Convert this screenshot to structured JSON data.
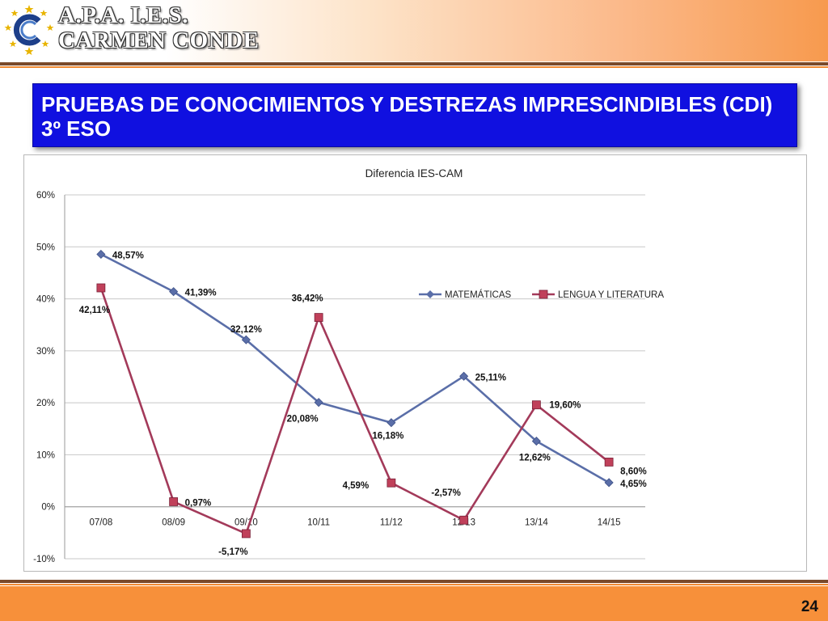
{
  "header": {
    "logo_line1": "A.P.A.  I.E.S.",
    "logo_line2": "CARMEN CONDE",
    "logo_icon": "stars-circle-logo"
  },
  "slide": {
    "title": "PRUEBAS DE CONOCIMIENTOS Y DESTREZAS IMPRESCINDIBLES (CDI) 3º ESO",
    "page_number": "24"
  },
  "colors": {
    "title_bg": "#1010e0",
    "matematicas": "#5a6ea8",
    "lengua": "#a33a5a",
    "footer": "#f7903a"
  },
  "chart_data": {
    "type": "line",
    "title": "Diferencia IES-CAM",
    "categories": [
      "07/08",
      "08/09",
      "09/10",
      "10/11",
      "11/12",
      "12/13",
      "13/14",
      "14/15"
    ],
    "y_ticks": [
      "-10%",
      "0%",
      "10%",
      "20%",
      "30%",
      "40%",
      "50%",
      "60%"
    ],
    "ylim": [
      -10,
      60
    ],
    "grid": true,
    "legend_position": "top-right",
    "series": [
      {
        "name": "MATEMÁTICAS",
        "values": [
          48.57,
          41.39,
          32.12,
          20.08,
          16.18,
          25.11,
          12.62,
          4.65
        ],
        "labels": [
          "48,57%",
          "41,39%",
          "32,12%",
          "20,08%",
          "16,18%",
          "25,11%",
          "12,62%",
          "4,65%"
        ],
        "marker": "diamond"
      },
      {
        "name": "LENGUA Y LITERATURA",
        "values": [
          42.11,
          0.97,
          -5.17,
          36.42,
          4.59,
          -2.57,
          19.6,
          8.6
        ],
        "labels": [
          "42,11%",
          "0,97%",
          "-5,17%",
          "36,42%",
          "4,59%",
          "-2,57%",
          "19,60%",
          "8,60%"
        ],
        "marker": "square"
      }
    ]
  }
}
